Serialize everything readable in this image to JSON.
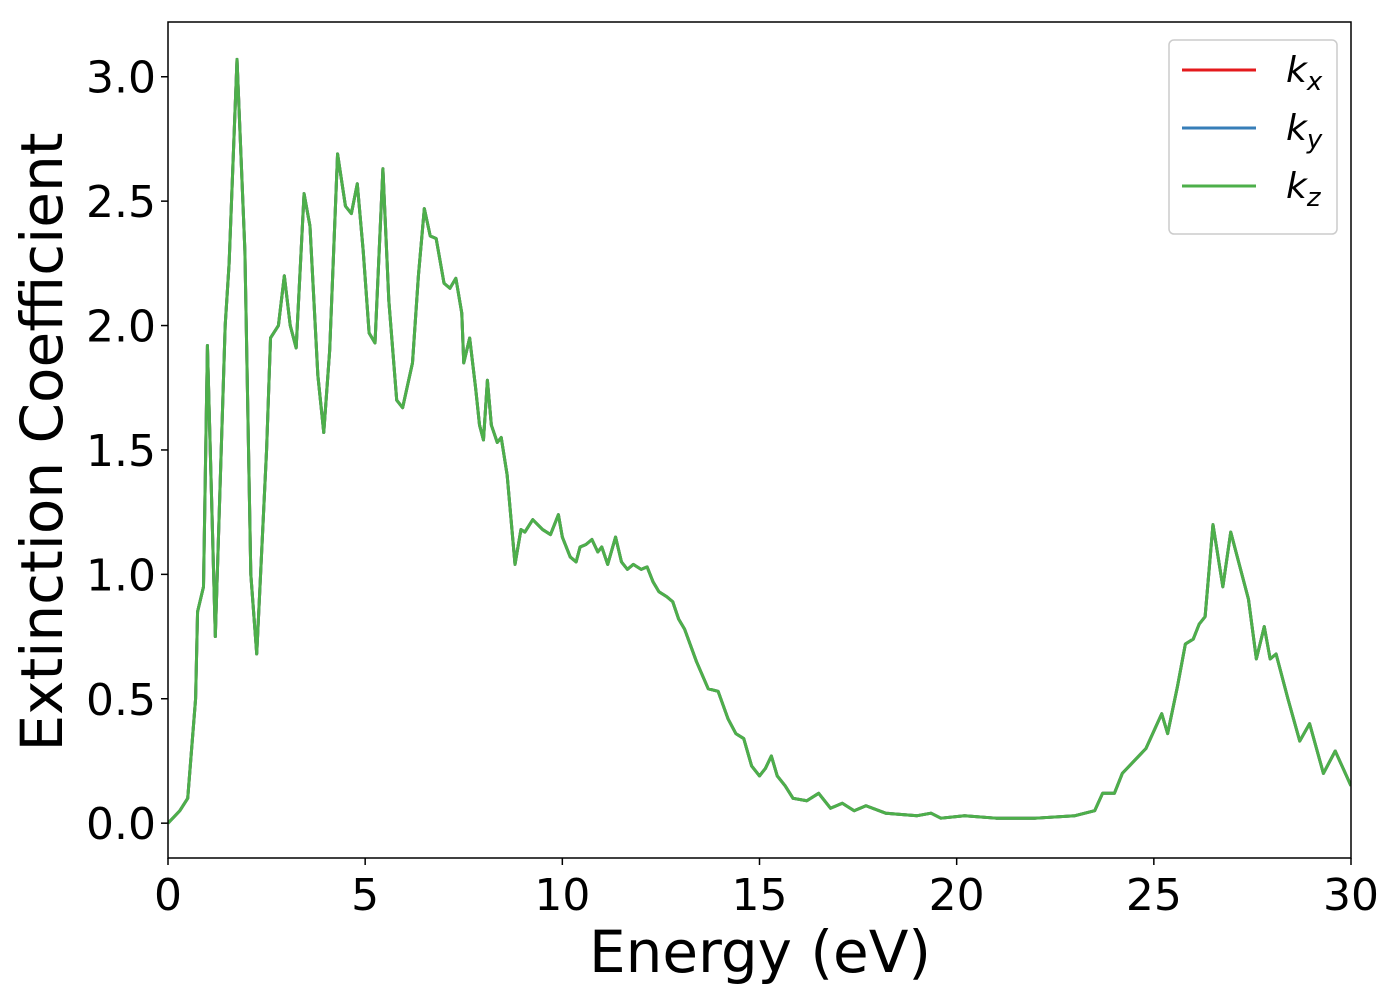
{
  "chart_data": {
    "type": "line",
    "xlabel": "Energy (eV)",
    "ylabel": "Extinction Coefficient",
    "xlim": [
      0,
      30
    ],
    "ylim": [
      -0.14,
      3.22
    ],
    "xticks": [
      0,
      5,
      10,
      15,
      20,
      25,
      30
    ],
    "yticks": [
      {
        "value": 0,
        "label": "0.0"
      },
      0.5,
      {
        "value": 1,
        "label": "1.0"
      },
      1.5,
      {
        "value": 2,
        "label": "2.0"
      },
      2.5,
      {
        "value": 3,
        "label": "3.0"
      }
    ],
    "legend": "upper right",
    "x": [
      0,
      0.3,
      0.5,
      0.7,
      0.75,
      0.9,
      1.0,
      1.2,
      1.45,
      1.55,
      1.75,
      1.95,
      2.1,
      2.25,
      2.5,
      2.6,
      2.8,
      2.95,
      3.1,
      3.25,
      3.45,
      3.6,
      3.8,
      3.95,
      4.1,
      4.3,
      4.5,
      4.65,
      4.8,
      4.95,
      5.1,
      5.25,
      5.45,
      5.6,
      5.8,
      5.95,
      6.2,
      6.35,
      6.5,
      6.65,
      6.8,
      7.0,
      7.15,
      7.3,
      7.45,
      7.5,
      7.65,
      7.8,
      7.9,
      8.0,
      8.1,
      8.2,
      8.35,
      8.45,
      8.6,
      8.8,
      8.95,
      9.05,
      9.25,
      9.5,
      9.7,
      9.9,
      10.0,
      10.2,
      10.35,
      10.45,
      10.6,
      10.75,
      10.9,
      11.0,
      11.15,
      11.35,
      11.5,
      11.65,
      11.8,
      12.0,
      12.15,
      12.3,
      12.45,
      12.65,
      12.8,
      12.95,
      13.1,
      13.4,
      13.7,
      13.95,
      14.2,
      14.4,
      14.6,
      14.8,
      15.0,
      15.15,
      15.3,
      15.45,
      15.65,
      15.85,
      16.2,
      16.5,
      16.8,
      17.1,
      17.4,
      17.7,
      18.2,
      19.0,
      19.35,
      19.6,
      20.2,
      21.0,
      22.0,
      23.0,
      23.5,
      23.7,
      24.0,
      24.2,
      24.5,
      24.8,
      25.0,
      25.2,
      25.35,
      25.6,
      25.8,
      26.0,
      26.15,
      26.3,
      26.5,
      26.75,
      26.95,
      27.2,
      27.4,
      27.6,
      27.8,
      27.95,
      28.1,
      28.4,
      28.7,
      28.95,
      29.3,
      29.6,
      29.8,
      30.0
    ],
    "series": [
      {
        "name": "kx",
        "color": "#e41a1c",
        "values": [
          0,
          0.05,
          0.1,
          0.5,
          0.85,
          0.95,
          1.92,
          0.75,
          2.0,
          2.25,
          3.07,
          2.3,
          1.0,
          0.68,
          1.5,
          1.95,
          2.0,
          2.2,
          2.0,
          1.91,
          2.53,
          2.4,
          1.8,
          1.57,
          1.9,
          2.69,
          2.48,
          2.45,
          2.57,
          2.3,
          1.97,
          1.93,
          2.63,
          2.1,
          1.7,
          1.67,
          1.85,
          2.2,
          2.47,
          2.36,
          2.35,
          2.17,
          2.15,
          2.19,
          2.05,
          1.85,
          1.95,
          1.75,
          1.6,
          1.54,
          1.78,
          1.6,
          1.53,
          1.55,
          1.4,
          1.04,
          1.18,
          1.17,
          1.22,
          1.18,
          1.16,
          1.24,
          1.15,
          1.07,
          1.05,
          1.11,
          1.12,
          1.14,
          1.09,
          1.11,
          1.04,
          1.15,
          1.05,
          1.02,
          1.04,
          1.02,
          1.03,
          0.97,
          0.93,
          0.91,
          0.89,
          0.82,
          0.78,
          0.65,
          0.54,
          0.53,
          0.42,
          0.36,
          0.34,
          0.23,
          0.19,
          0.22,
          0.27,
          0.19,
          0.15,
          0.1,
          0.09,
          0.12,
          0.06,
          0.08,
          0.05,
          0.07,
          0.04,
          0.03,
          0.04,
          0.02,
          0.03,
          0.02,
          0.02,
          0.03,
          0.05,
          0.12,
          0.12,
          0.2,
          0.25,
          0.3,
          0.37,
          0.44,
          0.36,
          0.55,
          0.72,
          0.74,
          0.8,
          0.83,
          1.2,
          0.95,
          1.17,
          1.02,
          0.9,
          0.66,
          0.79,
          0.66,
          0.68,
          0.5,
          0.33,
          0.4,
          0.2,
          0.29,
          0.22,
          0.15
        ]
      },
      {
        "name": "ky",
        "color": "#377eb8",
        "values": [
          0,
          0.05,
          0.1,
          0.5,
          0.85,
          0.95,
          1.92,
          0.75,
          2.0,
          2.25,
          3.07,
          2.3,
          1.0,
          0.68,
          1.5,
          1.95,
          2.0,
          2.2,
          2.0,
          1.91,
          2.53,
          2.4,
          1.8,
          1.57,
          1.9,
          2.69,
          2.48,
          2.45,
          2.57,
          2.3,
          1.97,
          1.93,
          2.63,
          2.1,
          1.7,
          1.67,
          1.85,
          2.2,
          2.47,
          2.36,
          2.35,
          2.17,
          2.15,
          2.19,
          2.05,
          1.85,
          1.95,
          1.75,
          1.6,
          1.54,
          1.78,
          1.6,
          1.53,
          1.55,
          1.4,
          1.04,
          1.18,
          1.17,
          1.22,
          1.18,
          1.16,
          1.24,
          1.15,
          1.07,
          1.05,
          1.11,
          1.12,
          1.14,
          1.09,
          1.11,
          1.04,
          1.15,
          1.05,
          1.02,
          1.04,
          1.02,
          1.03,
          0.97,
          0.93,
          0.91,
          0.89,
          0.82,
          0.78,
          0.65,
          0.54,
          0.53,
          0.42,
          0.36,
          0.34,
          0.23,
          0.19,
          0.22,
          0.27,
          0.19,
          0.15,
          0.1,
          0.09,
          0.12,
          0.06,
          0.08,
          0.05,
          0.07,
          0.04,
          0.03,
          0.04,
          0.02,
          0.03,
          0.02,
          0.02,
          0.03,
          0.05,
          0.12,
          0.12,
          0.2,
          0.25,
          0.3,
          0.37,
          0.44,
          0.36,
          0.55,
          0.72,
          0.74,
          0.8,
          0.83,
          1.2,
          0.95,
          1.17,
          1.02,
          0.9,
          0.66,
          0.79,
          0.66,
          0.68,
          0.5,
          0.33,
          0.4,
          0.2,
          0.29,
          0.22,
          0.15
        ]
      },
      {
        "name": "kz",
        "color": "#4daf4a",
        "values": [
          0,
          0.05,
          0.1,
          0.5,
          0.85,
          0.95,
          1.92,
          0.75,
          2.0,
          2.25,
          3.07,
          2.3,
          1.0,
          0.68,
          1.5,
          1.95,
          2.0,
          2.2,
          2.0,
          1.91,
          2.53,
          2.4,
          1.8,
          1.57,
          1.9,
          2.69,
          2.48,
          2.45,
          2.57,
          2.3,
          1.97,
          1.93,
          2.63,
          2.1,
          1.7,
          1.67,
          1.85,
          2.2,
          2.47,
          2.36,
          2.35,
          2.17,
          2.15,
          2.19,
          2.05,
          1.85,
          1.95,
          1.75,
          1.6,
          1.54,
          1.78,
          1.6,
          1.53,
          1.55,
          1.4,
          1.04,
          1.18,
          1.17,
          1.22,
          1.18,
          1.16,
          1.24,
          1.15,
          1.07,
          1.05,
          1.11,
          1.12,
          1.14,
          1.09,
          1.11,
          1.04,
          1.15,
          1.05,
          1.02,
          1.04,
          1.02,
          1.03,
          0.97,
          0.93,
          0.91,
          0.89,
          0.82,
          0.78,
          0.65,
          0.54,
          0.53,
          0.42,
          0.36,
          0.34,
          0.23,
          0.19,
          0.22,
          0.27,
          0.19,
          0.15,
          0.1,
          0.09,
          0.12,
          0.06,
          0.08,
          0.05,
          0.07,
          0.04,
          0.03,
          0.04,
          0.02,
          0.03,
          0.02,
          0.02,
          0.03,
          0.05,
          0.12,
          0.12,
          0.2,
          0.25,
          0.3,
          0.37,
          0.44,
          0.36,
          0.55,
          0.72,
          0.74,
          0.8,
          0.83,
          1.2,
          0.95,
          1.17,
          1.02,
          0.9,
          0.66,
          0.79,
          0.66,
          0.68,
          0.5,
          0.33,
          0.4,
          0.2,
          0.29,
          0.22,
          0.15
        ]
      }
    ]
  }
}
